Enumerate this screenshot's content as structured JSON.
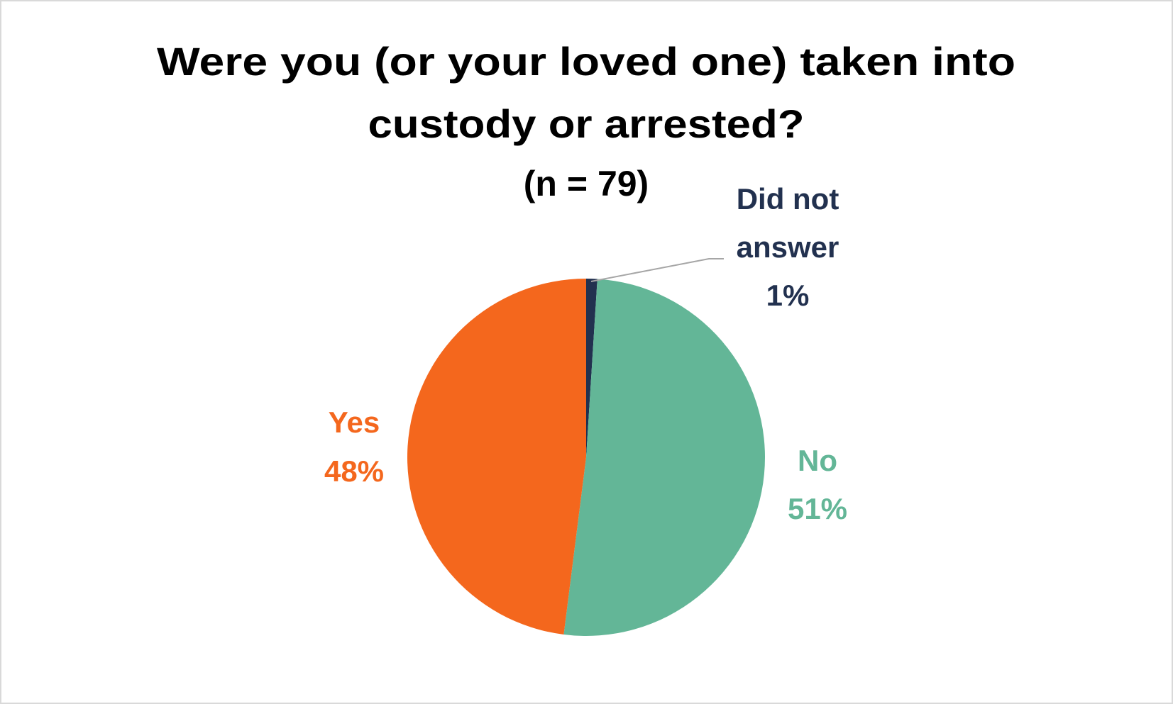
{
  "chart_data": {
    "type": "pie",
    "title_lines": [
      "Were you (or your loved one) taken into",
      "custody or arrested?"
    ],
    "subtitle": "(n = 79)",
    "start_angle_deg": 0,
    "direction": "clockwise",
    "slices": [
      {
        "label": "Did not answer",
        "label_lines": [
          "Did not",
          "answer"
        ],
        "value": 1,
        "value_label": "1%",
        "color": "#22314f"
      },
      {
        "label": "No",
        "label_lines": [
          "No"
        ],
        "value": 51,
        "value_label": "51%",
        "color": "#63b697"
      },
      {
        "label": "Yes",
        "label_lines": [
          "Yes"
        ],
        "value": 48,
        "value_label": "48%",
        "color": "#f4671d"
      }
    ],
    "legend": "none",
    "leader_line_color": "#a6a6a6"
  }
}
